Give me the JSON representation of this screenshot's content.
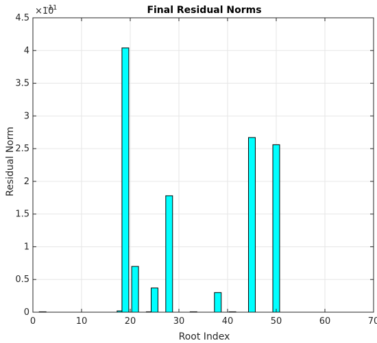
{
  "chart_data": {
    "type": "bar",
    "title": "Final Residual Norms",
    "xlabel": "Root Index",
    "ylabel": "Residual Norm",
    "xlim": [
      0,
      70
    ],
    "ylim": [
      0,
      4.5e-11
    ],
    "x_ticks": [
      0,
      10,
      20,
      30,
      40,
      50,
      60,
      70
    ],
    "x_tick_labels": [
      "0",
      "10",
      "20",
      "30",
      "40",
      "50",
      "60",
      "70"
    ],
    "y_ticks": [
      0,
      0.5,
      1,
      1.5,
      2,
      2.5,
      3,
      3.5,
      4,
      4.5
    ],
    "y_tick_labels": [
      "0",
      "0.5",
      "1",
      "1.5",
      "2",
      "2.5",
      "3",
      "3.5",
      "4",
      "4.5"
    ],
    "y_multiplier": {
      "base": "×10",
      "exponent": "-11"
    },
    "grid": true,
    "bar_color": "#00ffff",
    "edge_color": "#000000",
    "bar_width": 1.4,
    "x": [
      2,
      18,
      19,
      21,
      24,
      25,
      28,
      33,
      38,
      41,
      45,
      50
    ],
    "values": [
      5e-15,
      2e-13,
      4.04e-11,
      7e-12,
      5e-14,
      3.7e-12,
      1.78e-11,
      3e-14,
      3e-12,
      5e-14,
      2.67e-11,
      2.56e-11
    ]
  }
}
